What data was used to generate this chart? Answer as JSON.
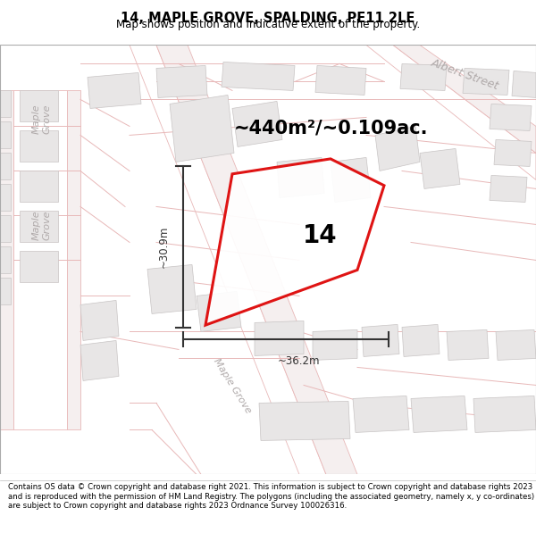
{
  "title": "14, MAPLE GROVE, SPALDING, PE11 2LE",
  "subtitle": "Map shows position and indicative extent of the property.",
  "area_text": "~440m²/~0.109ac.",
  "plot_number": "14",
  "dim_width": "~36.2m",
  "dim_height": "~30.9m",
  "footer": "Contains OS data © Crown copyright and database right 2021. This information is subject to Crown copyright and database rights 2023 and is reproduced with the permission of HM Land Registry. The polygons (including the associated geometry, namely x, y co-ordinates) are subject to Crown copyright and database rights 2023 Ordnance Survey 100026316.",
  "map_bg": "#f7f5f5",
  "road_line_color": "#e8b8b8",
  "road_fill": "#f5efef",
  "building_fill": "#e8e6e6",
  "building_edge": "#c8c4c4",
  "plot_fill": "#f5f2f2",
  "plot_edge": "#dd0000",
  "plot_edge_width": 2.2,
  "dim_color": "#333333",
  "title_fontsize": 10.5,
  "subtitle_fontsize": 8.5,
  "area_fontsize": 15,
  "plot_num_fontsize": 20,
  "footer_fontsize": 6.2,
  "street_label_color": "#b0aaaa",
  "street_label_fontsize": 8,
  "note_color": "#aaaaaa"
}
